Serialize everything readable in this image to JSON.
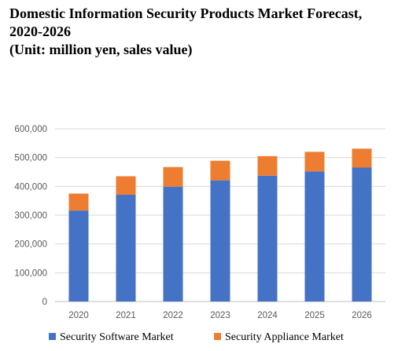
{
  "title_lines": [
    "Domestic Information Security Products Market Forecast,",
    "2020-2026",
    "(Unit: million yen, sales value)"
  ],
  "chart_data": {
    "type": "bar",
    "stacked": true,
    "categories": [
      "2020",
      "2021",
      "2022",
      "2023",
      "2024",
      "2025",
      "2026"
    ],
    "series": [
      {
        "name": "Security Software Market",
        "color": "#4472C4",
        "values": [
          316000,
          371000,
          399000,
          421000,
          437000,
          452000,
          465000
        ]
      },
      {
        "name": "Security Appliance Market",
        "color": "#ED7D31",
        "values": [
          59000,
          64000,
          68000,
          68000,
          68000,
          68000,
          66000
        ]
      }
    ],
    "ylim": [
      0,
      600000
    ],
    "yticks": [
      "0",
      "100,000",
      "200,000",
      "300,000",
      "400,000",
      "500,000",
      "600,000"
    ],
    "ytick_values": [
      0,
      100000,
      200000,
      300000,
      400000,
      500000,
      600000
    ],
    "grid": true,
    "legend_position": "bottom"
  }
}
